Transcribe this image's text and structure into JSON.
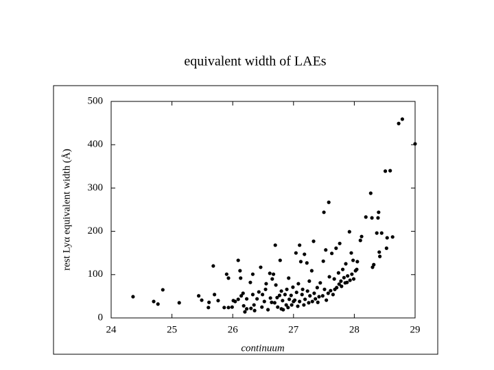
{
  "chart_data": {
    "type": "scatter",
    "title": "equivalent width of LAEs",
    "x_label": "continuum",
    "y_label": "rest Lyα equivalent width (Å)",
    "color": "#000000",
    "xlim": [
      24,
      29
    ],
    "xticks": [
      24,
      25,
      26,
      27,
      28,
      29
    ],
    "ylim": [
      0,
      500
    ],
    "yticks": [
      0,
      100,
      200,
      300,
      400,
      500
    ],
    "x": [
      24.36,
      24.7,
      24.77,
      24.85,
      25.12,
      25.44,
      25.49,
      25.6,
      25.61,
      25.68,
      25.7,
      25.76,
      25.86,
      25.9,
      25.93,
      25.93,
      25.99,
      26.01,
      26.04,
      26.09,
      26.09,
      26.12,
      26.13,
      26.14,
      26.17,
      26.18,
      26.2,
      26.23,
      26.23,
      26.29,
      26.3,
      26.33,
      26.33,
      26.35,
      26.36,
      26.4,
      26.43,
      26.46,
      26.48,
      26.49,
      26.52,
      26.54,
      26.55,
      26.58,
      26.61,
      26.62,
      26.64,
      26.65,
      26.67,
      26.69,
      26.7,
      26.71,
      26.73,
      26.74,
      26.77,
      26.78,
      26.8,
      26.8,
      26.82,
      26.83,
      26.86,
      26.88,
      26.89,
      26.91,
      26.92,
      26.93,
      26.96,
      26.97,
      26.99,
      27.0,
      27.02,
      27.04,
      27.05,
      27.07,
      27.08,
      27.1,
      27.1,
      27.12,
      27.14,
      27.15,
      27.17,
      27.18,
      27.19,
      27.22,
      27.23,
      27.25,
      27.26,
      27.27,
      27.3,
      27.31,
      27.33,
      27.34,
      27.36,
      27.39,
      27.4,
      27.42,
      27.44,
      27.48,
      27.49,
      27.5,
      27.51,
      27.53,
      27.54,
      27.57,
      27.58,
      27.59,
      27.61,
      27.63,
      27.65,
      27.67,
      27.68,
      27.7,
      27.71,
      27.74,
      27.75,
      27.76,
      27.78,
      27.79,
      27.81,
      27.83,
      27.85,
      27.86,
      27.88,
      27.89,
      27.92,
      27.93,
      27.95,
      27.96,
      27.98,
      27.99,
      28.02,
      28.04,
      28.05,
      28.1,
      28.12,
      28.19,
      28.27,
      28.29,
      28.3,
      28.32,
      28.37,
      28.39,
      28.4,
      28.41,
      28.42,
      28.45,
      28.51,
      28.53,
      28.54,
      28.59,
      28.63,
      28.73,
      28.79,
      29.0
    ],
    "values": [
      49,
      38,
      32,
      65,
      35,
      51,
      41,
      24,
      36,
      120,
      54,
      40,
      24,
      101,
      92,
      24,
      25,
      40,
      38,
      133,
      43,
      109,
      92,
      51,
      57,
      28,
      14,
      21,
      44,
      82,
      22,
      101,
      54,
      30,
      17,
      44,
      60,
      117,
      25,
      54,
      38,
      66,
      79,
      19,
      103,
      46,
      36,
      90,
      101,
      35,
      168,
      76,
      47,
      25,
      52,
      133,
      62,
      21,
      40,
      19,
      54,
      30,
      66,
      24,
      92,
      43,
      52,
      30,
      71,
      38,
      41,
      150,
      59,
      27,
      79,
      168,
      38,
      130,
      54,
      66,
      30,
      147,
      43,
      127,
      62,
      35,
      85,
      51,
      109,
      38,
      177,
      57,
      44,
      70,
      36,
      49,
      81,
      51,
      131,
      244,
      66,
      157,
      41,
      57,
      267,
      95,
      63,
      149,
      54,
      90,
      66,
      161,
      70,
      104,
      78,
      172,
      85,
      73,
      112,
      93,
      81,
      125,
      82,
      97,
      199,
      87,
      150,
      101,
      133,
      90,
      109,
      112,
      130,
      179,
      188,
      233,
      288,
      231,
      117,
      123,
      196,
      231,
      244,
      152,
      142,
      196,
      339,
      161,
      185,
      340,
      187,
      449,
      459,
      402
    ]
  }
}
